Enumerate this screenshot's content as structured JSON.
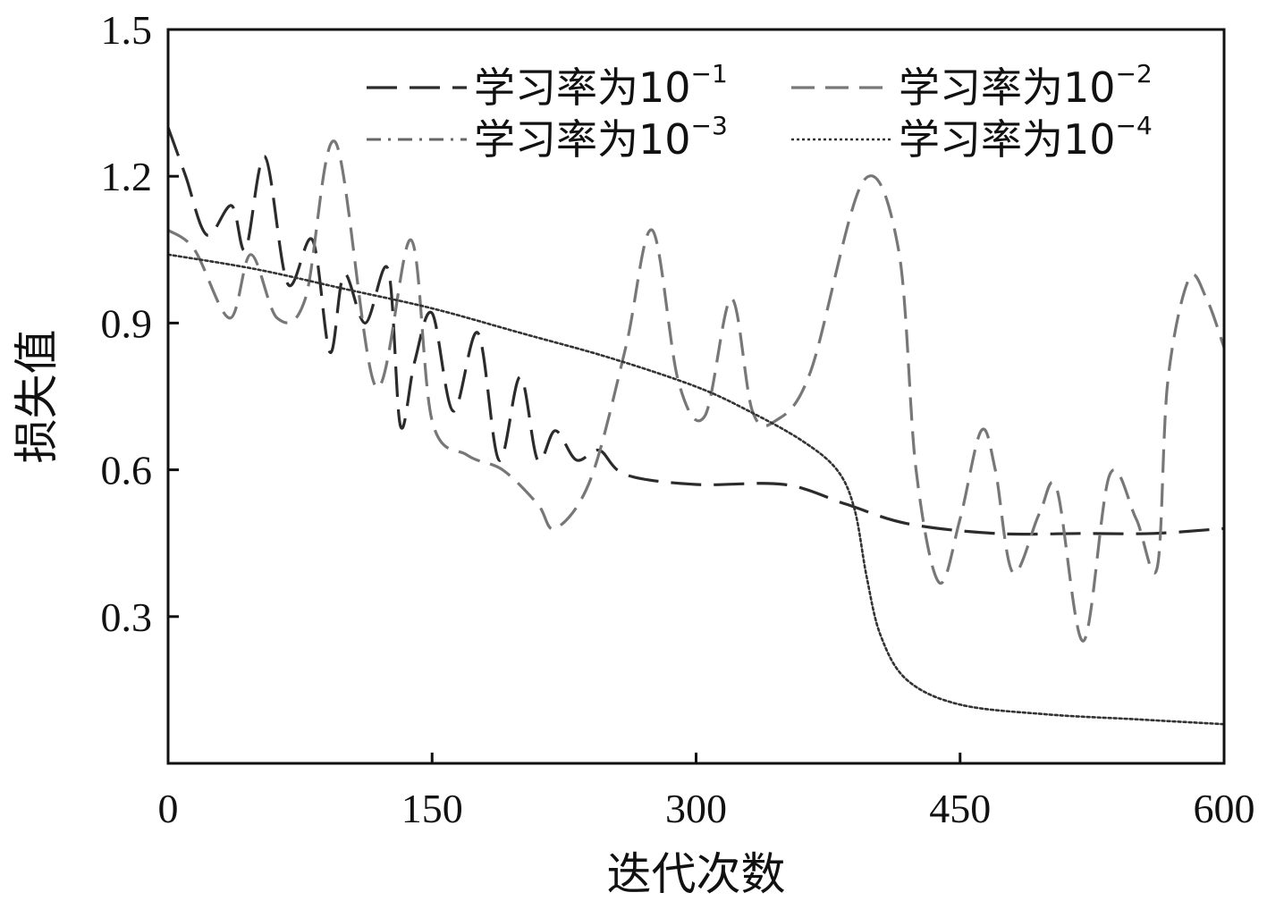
{
  "chart_data": {
    "type": "line",
    "xlabel": "迭代次数",
    "ylabel": "损失值",
    "xlim": [
      0,
      600
    ],
    "ylim": [
      0,
      1.5
    ],
    "xticks": [
      "0",
      "150",
      "300",
      "450",
      "600"
    ],
    "yticks": [
      "0.3",
      "0.6",
      "0.9",
      "1.2",
      "1.5"
    ],
    "legend_position": "top-right",
    "grid": false,
    "series": [
      {
        "name": "学习率为10⁻¹",
        "legend_base": "学习率为10",
        "legend_exp": "−1",
        "color": "#2b2b2b",
        "dash": "long-dash",
        "x": [
          0,
          10,
          22,
          36,
          44,
          55,
          68,
          82,
          92,
          100,
          112,
          125,
          132,
          140,
          150,
          162,
          176,
          188,
          200,
          210,
          220,
          232,
          245,
          260,
          300,
          350,
          385,
          420,
          470,
          520,
          560,
          600
        ],
        "y": [
          1.3,
          1.2,
          1.08,
          1.14,
          1.05,
          1.24,
          0.98,
          1.07,
          0.84,
          1.0,
          0.9,
          1.01,
          0.69,
          0.82,
          0.92,
          0.72,
          0.88,
          0.62,
          0.79,
          0.62,
          0.68,
          0.62,
          0.64,
          0.59,
          0.57,
          0.57,
          0.53,
          0.49,
          0.47,
          0.47,
          0.47,
          0.48
        ]
      },
      {
        "name": "学习率为10⁻²",
        "legend_base": "学习率为10",
        "legend_exp": "−2",
        "color": "#777777",
        "dash": "dash",
        "x": [
          0,
          15,
          35,
          47,
          62,
          78,
          95,
          118,
          138,
          150,
          170,
          190,
          210,
          220,
          240,
          260,
          275,
          290,
          305,
          320,
          332,
          345,
          365,
          395,
          415,
          425,
          438,
          450,
          462,
          470,
          480,
          495,
          505,
          520,
          535,
          550,
          562,
          568,
          580,
          590,
          600
        ],
        "y": [
          1.09,
          1.05,
          0.91,
          1.04,
          0.91,
          0.95,
          1.27,
          0.77,
          1.07,
          0.7,
          0.63,
          0.6,
          0.53,
          0.48,
          0.58,
          0.85,
          1.09,
          0.78,
          0.71,
          0.95,
          0.72,
          0.7,
          0.8,
          1.19,
          1.05,
          0.6,
          0.37,
          0.5,
          0.68,
          0.6,
          0.39,
          0.51,
          0.56,
          0.25,
          0.59,
          0.5,
          0.4,
          0.78,
          0.99,
          0.95,
          0.85
        ]
      },
      {
        "name": "学习率为10⁻³",
        "legend_base": "学习率为10",
        "legend_exp": "−3",
        "color": "#666666",
        "dash": "dash-dot",
        "x": [],
        "y": []
      },
      {
        "name": "学习率为10⁻⁴",
        "legend_base": "学习率为10",
        "legend_exp": "−4",
        "color": "#333333",
        "dash": "dotted",
        "x": [
          0,
          50,
          100,
          150,
          200,
          250,
          300,
          330,
          360,
          380,
          390,
          397,
          405,
          420,
          450,
          500,
          550,
          600
        ],
        "y": [
          1.04,
          1.01,
          0.97,
          0.93,
          0.88,
          0.83,
          0.77,
          0.72,
          0.66,
          0.6,
          0.52,
          0.38,
          0.26,
          0.17,
          0.12,
          0.1,
          0.09,
          0.08
        ]
      }
    ]
  }
}
